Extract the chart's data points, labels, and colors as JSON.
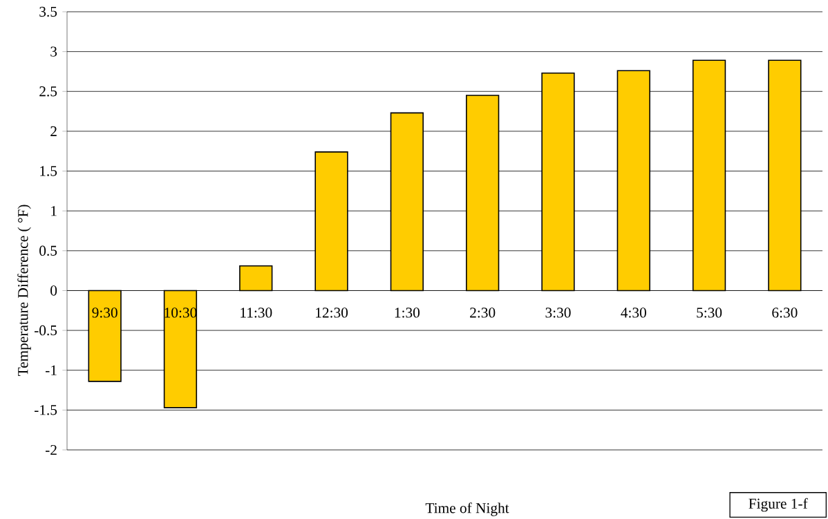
{
  "chart_data": {
    "type": "bar",
    "xlabel": "Time of Night",
    "ylabel": "Temperature Difference ( °F)",
    "categories": [
      "9:30",
      "10:30",
      "11:30",
      "12:30",
      "1:30",
      "2:30",
      "3:30",
      "4:30",
      "5:30",
      "6:30"
    ],
    "values": [
      -1.14,
      -1.47,
      0.31,
      1.74,
      2.23,
      2.45,
      2.73,
      2.76,
      2.89,
      2.89
    ],
    "color": "#ffcc00",
    "ylim": [
      -2,
      3.5
    ],
    "yticks": [
      -2,
      -1.5,
      -1,
      -0.5,
      0,
      0.5,
      1,
      1.5,
      2,
      2.5,
      3,
      3.5
    ],
    "grid": "y",
    "annotations": [
      "Figure 1-f"
    ]
  }
}
